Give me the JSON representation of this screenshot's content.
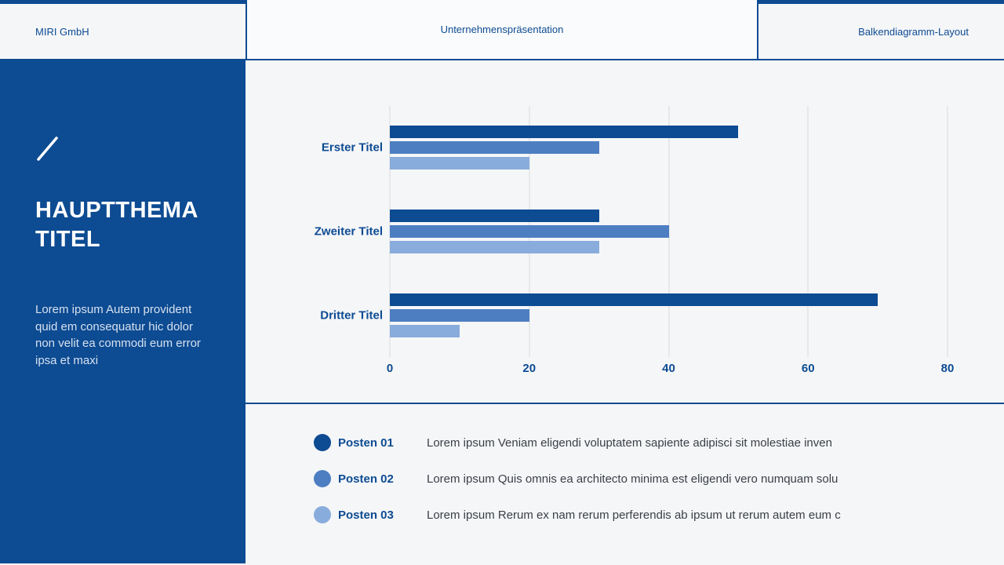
{
  "header": {
    "left": "MIRI GmbH",
    "center": "Unternehmenspräsentation",
    "right": "Balkendiagramm-Layout"
  },
  "sidebar": {
    "title_line1": "HAUPTTHEMA",
    "title_line2": "TITEL",
    "description": "Lorem ipsum Autem provident quid em consequatur hic dolor non velit ea commodi eum error ipsa et maxi"
  },
  "chart_data": {
    "type": "bar",
    "orientation": "horizontal",
    "title": "",
    "categories": [
      "Erster Titel",
      "Zweiter Titel",
      "Dritter Titel"
    ],
    "series": [
      {
        "name": "Posten 01",
        "color": "#0d4b92",
        "values": [
          50,
          30,
          70
        ]
      },
      {
        "name": "Posten 02",
        "color": "#4d7ec1",
        "values": [
          30,
          40,
          20
        ]
      },
      {
        "name": "Posten 03",
        "color": "#88acdc",
        "values": [
          20,
          30,
          10
        ]
      }
    ],
    "xlim": [
      0,
      80
    ],
    "xticks": [
      0,
      20,
      40,
      60,
      80
    ],
    "grid": true,
    "legend_position": "bottom"
  },
  "legend": {
    "items": [
      {
        "label": "Posten 01",
        "color": "#0d4b92",
        "description": "Lorem ipsum Veniam eligendi voluptatem sapiente adipisci sit molestiae inven"
      },
      {
        "label": "Posten 02",
        "color": "#4d7ec1",
        "description": "Lorem ipsum Quis omnis ea architecto minima est eligendi vero numquam solu"
      },
      {
        "label": "Posten 03",
        "color": "#88acdc",
        "description": "Lorem ipsum Rerum ex nam rerum perferendis ab ipsum ut rerum autem eum c"
      }
    ]
  },
  "colors": {
    "primary": "#0d4b92",
    "background": "#f5f6f8",
    "gridline": "#d8dadd"
  }
}
